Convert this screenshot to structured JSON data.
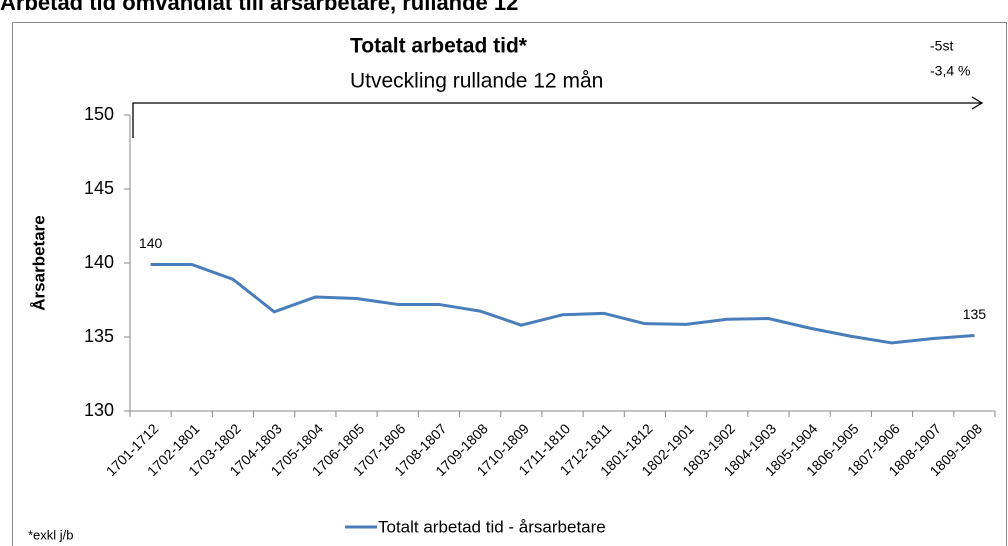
{
  "chart_data": {
    "type": "line",
    "title": "Arbetad tid omvandlat till årsarbetare, rullande 12",
    "annotations": [
      "Totalt arbetad tid*",
      "Utveckling rullande 12 mån",
      "-5st",
      "-3,4 %",
      "*exkl j/b"
    ],
    "y_label": "Årsarbetare",
    "categories": [
      "1701-1712",
      "1702-1801",
      "1703-1802",
      "1704-1803",
      "1705-1804",
      "1706-1805",
      "1707-1806",
      "1708-1807",
      "1709-1808",
      "1710-1809",
      "1711-1810",
      "1712-1811",
      "1801-1812",
      "1802-1901",
      "1803-1902",
      "1804-1903",
      "1805-1904",
      "1806-1905",
      "1807-1906",
      "1808-1907",
      "1809-1908"
    ],
    "series": [
      {
        "name": "Totalt arbetad tid -  årsarbetare",
        "color": "#4a7ebb",
        "values": [
          139.9,
          139.9,
          138.9,
          136.7,
          137.7,
          137.6,
          137.2,
          137.2,
          136.75,
          135.8,
          136.5,
          136.6,
          135.9,
          135.85,
          136.2,
          136.25,
          135.6,
          135.05,
          134.6,
          134.9,
          135.1
        ],
        "value_labels": [
          "140",
          null,
          null,
          null,
          null,
          null,
          null,
          null,
          null,
          null,
          null,
          null,
          null,
          null,
          null,
          null,
          null,
          null,
          null,
          null,
          "135"
        ]
      }
    ],
    "ylim": [
      130,
      150
    ],
    "yticks": [
      130,
      135,
      140,
      145,
      150
    ],
    "grid": false,
    "legend": "bottom"
  }
}
